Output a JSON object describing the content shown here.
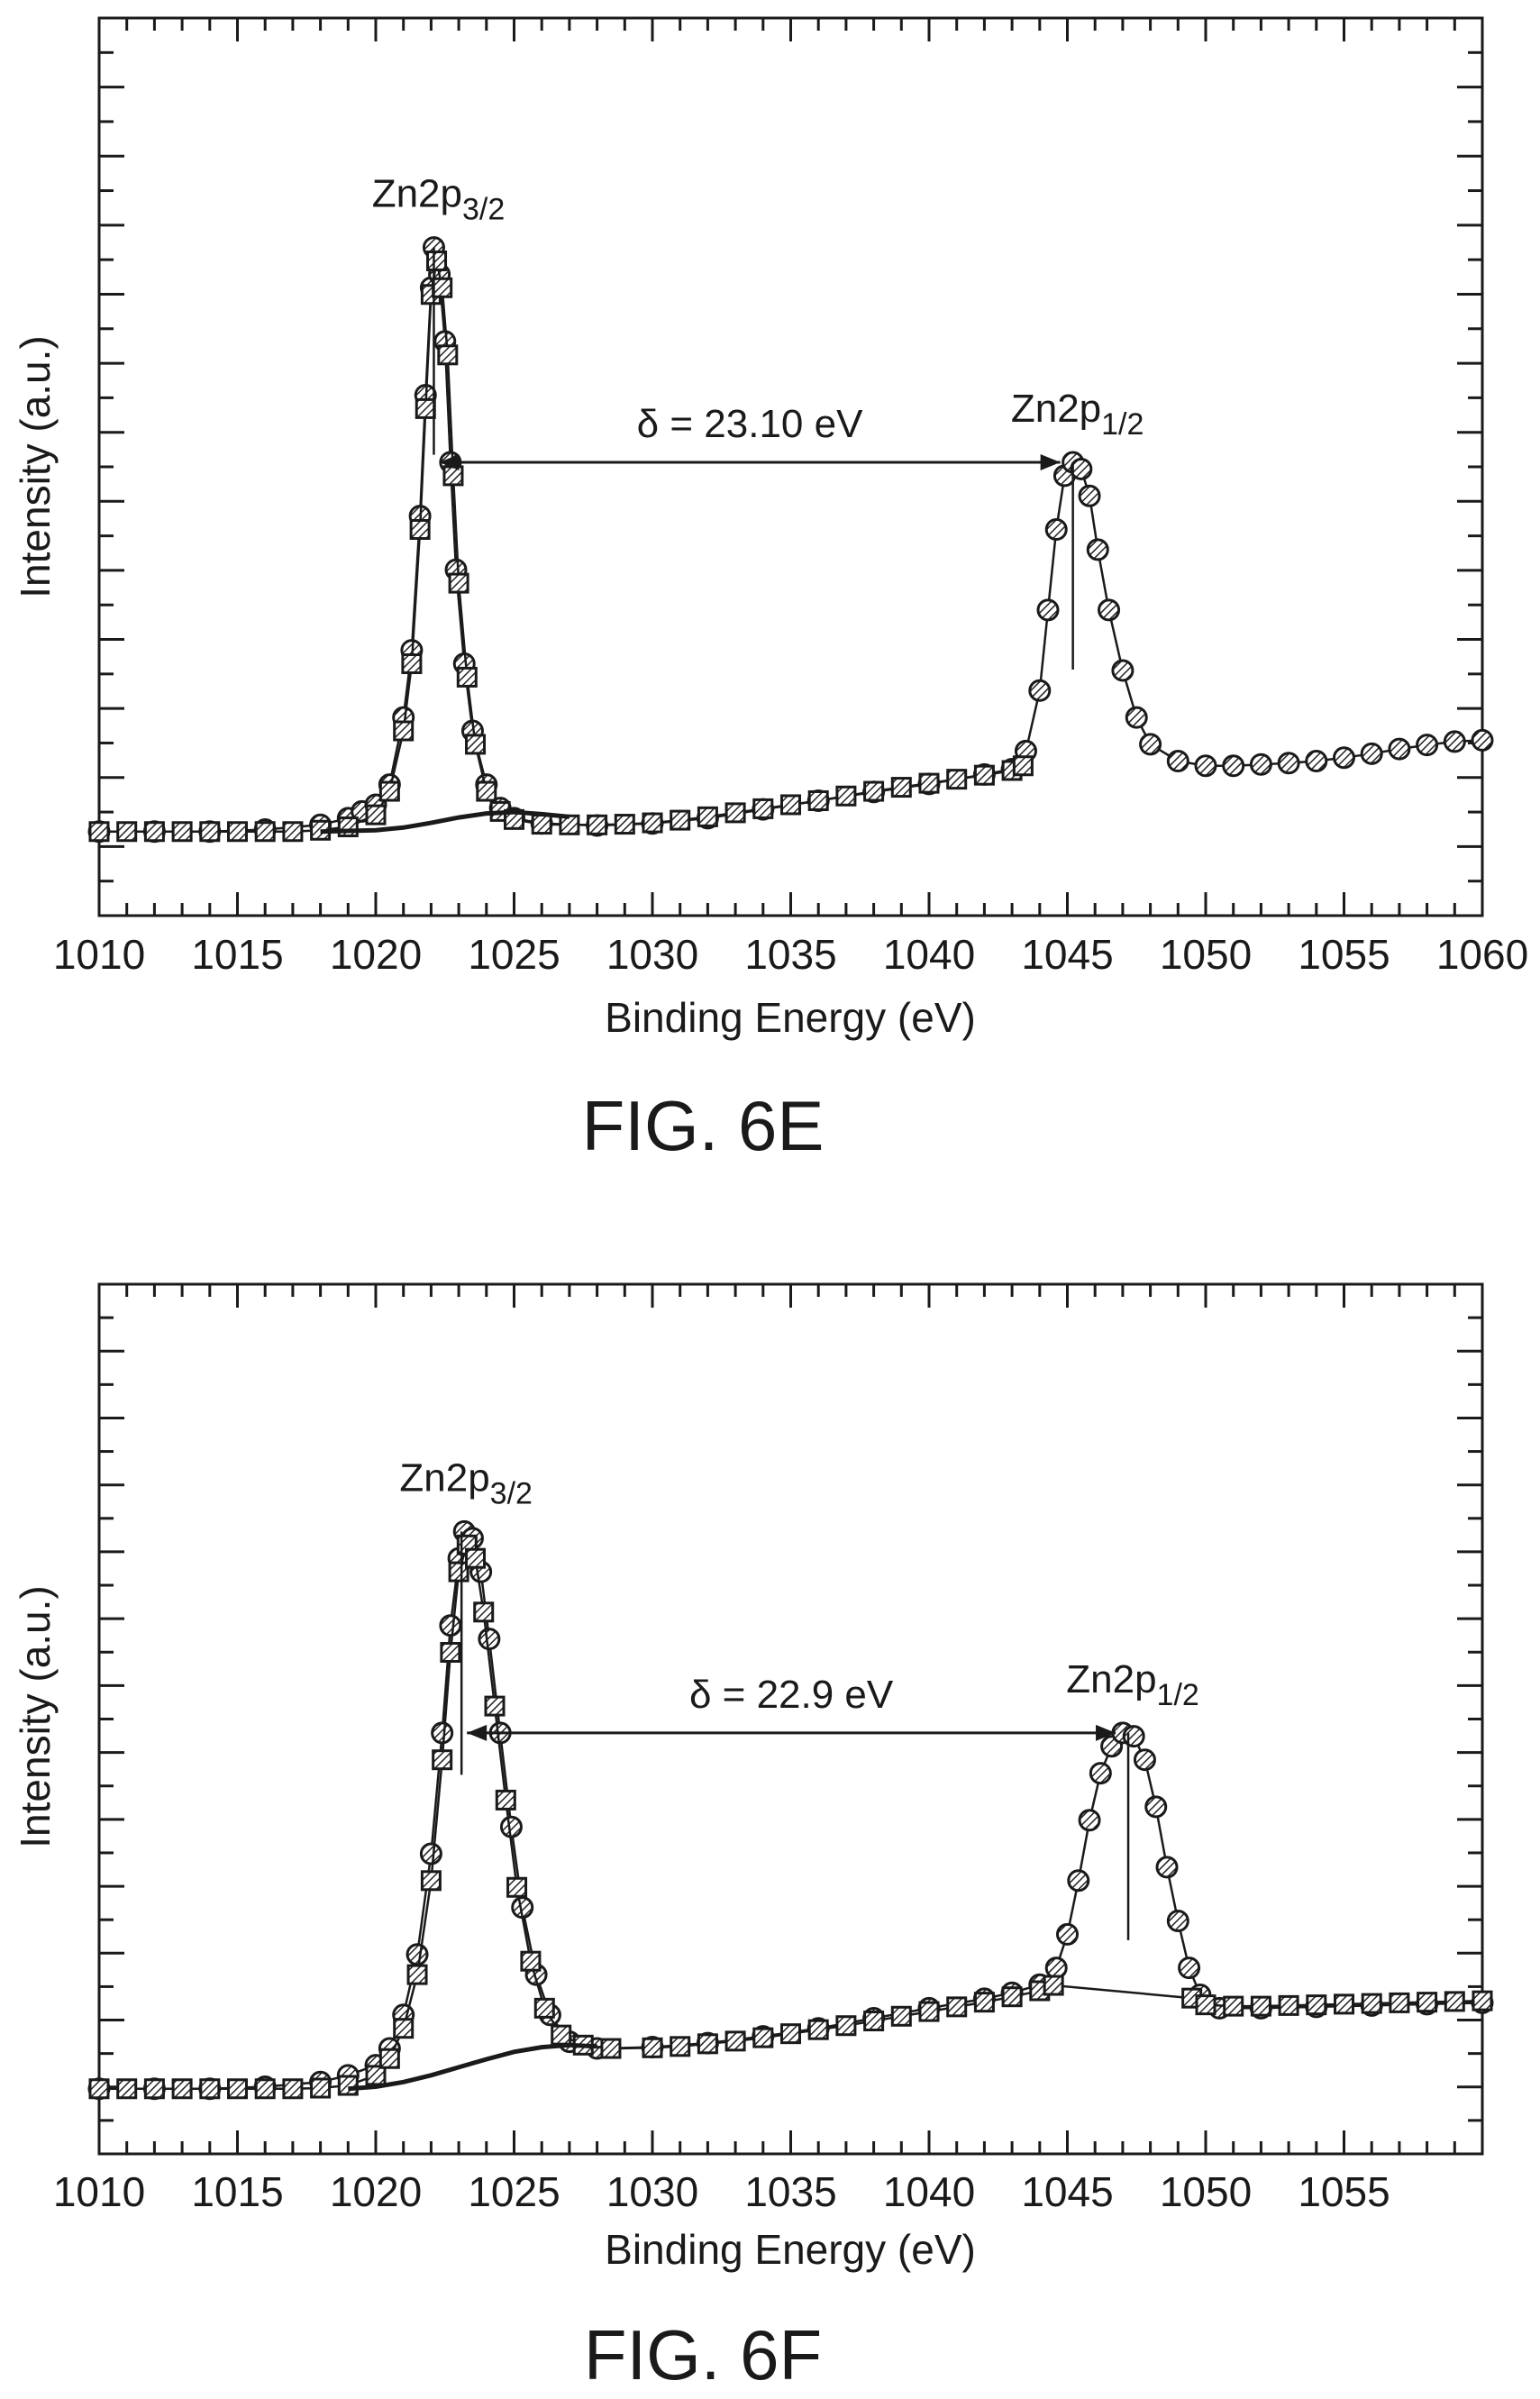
{
  "chart_data": [
    {
      "type": "scatter",
      "figure_label": "FIG. 6E",
      "xlabel": "Binding Energy (eV)",
      "ylabel": "Intensity (a.u.)",
      "xlim": [
        1010,
        1060
      ],
      "ylim": [
        0,
        100
      ],
      "x_ticks": [
        "1010",
        "1015",
        "1020",
        "1025",
        "1030",
        "1035",
        "1040",
        "1045",
        "1050",
        "1055",
        "1060"
      ],
      "peaks": [
        {
          "label": "Zn2p",
          "sub": "3/2",
          "x": 1022.1,
          "y": 92
        },
        {
          "label": "Zn2p",
          "sub": "1/2",
          "x": 1045.2,
          "y": 60
        }
      ],
      "annotation": {
        "text": "δ = 23.10 eV",
        "from_x": 1022.1,
        "to_x": 1045.2,
        "y": 60
      },
      "series": [
        {
          "marker": "circle",
          "points": [
            [
              1010,
              5
            ],
            [
              1012,
              5
            ],
            [
              1014,
              5
            ],
            [
              1016,
              5.3
            ],
            [
              1018,
              6
            ],
            [
              1019,
              7
            ],
            [
              1019.5,
              8
            ],
            [
              1020,
              9
            ],
            [
              1020.5,
              12
            ],
            [
              1021,
              22
            ],
            [
              1021.3,
              32
            ],
            [
              1021.6,
              52
            ],
            [
              1021.8,
              70
            ],
            [
              1022,
              86
            ],
            [
              1022.1,
              92
            ],
            [
              1022.3,
              88
            ],
            [
              1022.5,
              78
            ],
            [
              1022.7,
              60
            ],
            [
              1022.9,
              44
            ],
            [
              1023.2,
              30
            ],
            [
              1023.5,
              20
            ],
            [
              1024,
              12
            ],
            [
              1024.5,
              8.5
            ],
            [
              1025,
              7
            ],
            [
              1026,
              6.2
            ],
            [
              1028,
              5.9
            ],
            [
              1030,
              6.2
            ],
            [
              1032,
              7
            ],
            [
              1034,
              8.3
            ],
            [
              1036,
              9.6
            ],
            [
              1038,
              10.9
            ],
            [
              1040,
              12.1
            ],
            [
              1042,
              13.5
            ],
            [
              1043,
              14.3
            ],
            [
              1043.5,
              17
            ],
            [
              1044,
              26
            ],
            [
              1044.3,
              38
            ],
            [
              1044.6,
              50
            ],
            [
              1044.9,
              58
            ],
            [
              1045.2,
              60
            ],
            [
              1045.5,
              59
            ],
            [
              1045.8,
              55
            ],
            [
              1046.1,
              47
            ],
            [
              1046.5,
              38
            ],
            [
              1047,
              29
            ],
            [
              1047.5,
              22
            ],
            [
              1048,
              18
            ],
            [
              1049,
              15.5
            ],
            [
              1050,
              14.8
            ],
            [
              1051,
              14.8
            ],
            [
              1052,
              15
            ],
            [
              1053,
              15.2
            ],
            [
              1054,
              15.5
            ],
            [
              1055,
              16
            ],
            [
              1056,
              16.6
            ],
            [
              1057,
              17.3
            ],
            [
              1058,
              17.9
            ],
            [
              1059,
              18.4
            ],
            [
              1060,
              18.6
            ]
          ]
        },
        {
          "marker": "square",
          "points": [
            [
              1010,
              5
            ],
            [
              1011,
              5
            ],
            [
              1012,
              5
            ],
            [
              1013,
              5
            ],
            [
              1014,
              5
            ],
            [
              1015,
              5
            ],
            [
              1016,
              5
            ],
            [
              1017,
              5
            ],
            [
              1018,
              5.2
            ],
            [
              1019,
              5.7
            ],
            [
              1020,
              7.5
            ],
            [
              1020.5,
              11
            ],
            [
              1021,
              20
            ],
            [
              1021.3,
              30
            ],
            [
              1021.6,
              50
            ],
            [
              1021.8,
              68
            ],
            [
              1022,
              85
            ],
            [
              1022.2,
              90
            ],
            [
              1022.4,
              86
            ],
            [
              1022.6,
              76
            ],
            [
              1022.8,
              58
            ],
            [
              1023,
              42
            ],
            [
              1023.3,
              28
            ],
            [
              1023.6,
              18
            ],
            [
              1024,
              11
            ],
            [
              1024.5,
              8
            ],
            [
              1025,
              6.8
            ],
            [
              1026,
              6.1
            ],
            [
              1027,
              6
            ],
            [
              1028,
              6
            ],
            [
              1029,
              6.1
            ],
            [
              1030,
              6.3
            ],
            [
              1031,
              6.7
            ],
            [
              1032,
              7.2
            ],
            [
              1033,
              7.8
            ],
            [
              1034,
              8.4
            ],
            [
              1035,
              9
            ],
            [
              1036,
              9.6
            ],
            [
              1037,
              10.3
            ],
            [
              1038,
              11
            ],
            [
              1039,
              11.6
            ],
            [
              1040,
              12.2
            ],
            [
              1041,
              12.8
            ],
            [
              1042,
              13.4
            ],
            [
              1043,
              14.1
            ],
            [
              1043.4,
              14.8
            ]
          ]
        },
        {
          "marker": "line",
          "points": [
            [
              1018,
              5
            ],
            [
              1020,
              5.2
            ],
            [
              1021,
              5.6
            ],
            [
              1022,
              6.3
            ],
            [
              1023,
              7.1
            ],
            [
              1024,
              7.7
            ],
            [
              1025,
              7.9
            ],
            [
              1026,
              7.6
            ],
            [
              1027,
              7.2
            ]
          ]
        }
      ]
    },
    {
      "type": "scatter",
      "figure_label": "FIG. 6F",
      "xlabel": "Binding Energy (eV)",
      "ylabel": "Intensity (a.u.)",
      "xlim": [
        1010,
        1060
      ],
      "ylim": [
        0,
        100
      ],
      "x_ticks": [
        "1010",
        "1015",
        "1020",
        "1025",
        "1030",
        "1035",
        "1040",
        "1045",
        "1050",
        "1055"
      ],
      "peaks": [
        {
          "label": "Zn2p",
          "sub": "3/2",
          "x": 1023.1,
          "y": 88
        },
        {
          "label": "Zn2p",
          "sub": "1/2",
          "x": 1047.2,
          "y": 58
        }
      ],
      "annotation": {
        "text": "δ = 22.9 eV",
        "from_x": 1023.1,
        "to_x": 1047.2,
        "y": 58
      },
      "series": [
        {
          "marker": "circle",
          "points": [
            [
              1010,
              5
            ],
            [
              1012,
              5
            ],
            [
              1014,
              5
            ],
            [
              1016,
              5.3
            ],
            [
              1018,
              6
            ],
            [
              1019,
              7
            ],
            [
              1020,
              8.5
            ],
            [
              1020.5,
              11
            ],
            [
              1021,
              16
            ],
            [
              1021.5,
              25
            ],
            [
              1022,
              40
            ],
            [
              1022.4,
              58
            ],
            [
              1022.7,
              74
            ],
            [
              1023,
              84
            ],
            [
              1023.2,
              88
            ],
            [
              1023.5,
              87
            ],
            [
              1023.8,
              82
            ],
            [
              1024.1,
              72
            ],
            [
              1024.5,
              58
            ],
            [
              1024.9,
              44
            ],
            [
              1025.3,
              32
            ],
            [
              1025.8,
              22
            ],
            [
              1026.3,
              16
            ],
            [
              1027,
              12
            ],
            [
              1028,
              11
            ],
            [
              1030,
              11.2
            ],
            [
              1032,
              11.8
            ],
            [
              1034,
              12.8
            ],
            [
              1036,
              14
            ],
            [
              1038,
              15.5
            ],
            [
              1040,
              17
            ],
            [
              1042,
              18.4
            ],
            [
              1043,
              19.3
            ],
            [
              1044,
              20.5
            ],
            [
              1044.6,
              23
            ],
            [
              1045,
              28
            ],
            [
              1045.4,
              36
            ],
            [
              1045.8,
              45
            ],
            [
              1046.2,
              52
            ],
            [
              1046.6,
              56
            ],
            [
              1047,
              58
            ],
            [
              1047.4,
              57.5
            ],
            [
              1047.8,
              54
            ],
            [
              1048.2,
              47
            ],
            [
              1048.6,
              38
            ],
            [
              1049,
              30
            ],
            [
              1049.4,
              23
            ],
            [
              1049.8,
              19
            ],
            [
              1050.5,
              17
            ],
            [
              1052,
              17
            ],
            [
              1054,
              17.2
            ],
            [
              1056,
              17.4
            ],
            [
              1058,
              17.6
            ],
            [
              1060,
              17.8
            ]
          ]
        },
        {
          "marker": "square",
          "points": [
            [
              1010,
              5
            ],
            [
              1011,
              5
            ],
            [
              1012,
              5
            ],
            [
              1013,
              5
            ],
            [
              1014,
              5
            ],
            [
              1015,
              5
            ],
            [
              1016,
              5
            ],
            [
              1017,
              5
            ],
            [
              1018,
              5.1
            ],
            [
              1019,
              5.5
            ],
            [
              1020,
              7
            ],
            [
              1020.5,
              9.5
            ],
            [
              1021,
              14
            ],
            [
              1021.5,
              22
            ],
            [
              1022,
              36
            ],
            [
              1022.4,
              54
            ],
            [
              1022.7,
              70
            ],
            [
              1023,
              82
            ],
            [
              1023.3,
              86
            ],
            [
              1023.6,
              84
            ],
            [
              1023.9,
              76
            ],
            [
              1024.3,
              62
            ],
            [
              1024.7,
              48
            ],
            [
              1025.1,
              35
            ],
            [
              1025.6,
              24
            ],
            [
              1026.1,
              17
            ],
            [
              1026.7,
              13
            ],
            [
              1027.5,
              11.5
            ],
            [
              1028.5,
              11
            ],
            [
              1030,
              11.1
            ],
            [
              1031,
              11.3
            ],
            [
              1032,
              11.7
            ],
            [
              1033,
              12.1
            ],
            [
              1034,
              12.6
            ],
            [
              1035,
              13.2
            ],
            [
              1036,
              13.8
            ],
            [
              1037,
              14.4
            ],
            [
              1038,
              15.1
            ],
            [
              1039,
              15.8
            ],
            [
              1040,
              16.5
            ],
            [
              1041,
              17.2
            ],
            [
              1042,
              17.9
            ],
            [
              1043,
              18.7
            ],
            [
              1044,
              19.6
            ],
            [
              1044.5,
              20.4
            ],
            [
              1049.5,
              18.5
            ],
            [
              1050,
              17.5
            ],
            [
              1051,
              17.3
            ],
            [
              1052,
              17.3
            ],
            [
              1053,
              17.4
            ],
            [
              1054,
              17.5
            ],
            [
              1055,
              17.6
            ],
            [
              1056,
              17.7
            ],
            [
              1057,
              17.8
            ],
            [
              1058,
              17.9
            ],
            [
              1059,
              18
            ],
            [
              1060,
              18.1
            ]
          ]
        },
        {
          "marker": "line",
          "points": [
            [
              1019,
              5
            ],
            [
              1020,
              5.3
            ],
            [
              1021,
              6
            ],
            [
              1022,
              7
            ],
            [
              1023,
              8.2
            ],
            [
              1024,
              9.4
            ],
            [
              1025,
              10.5
            ],
            [
              1026,
              11.2
            ],
            [
              1027,
              11.5
            ],
            [
              1028,
              11.3
            ]
          ]
        }
      ]
    }
  ]
}
